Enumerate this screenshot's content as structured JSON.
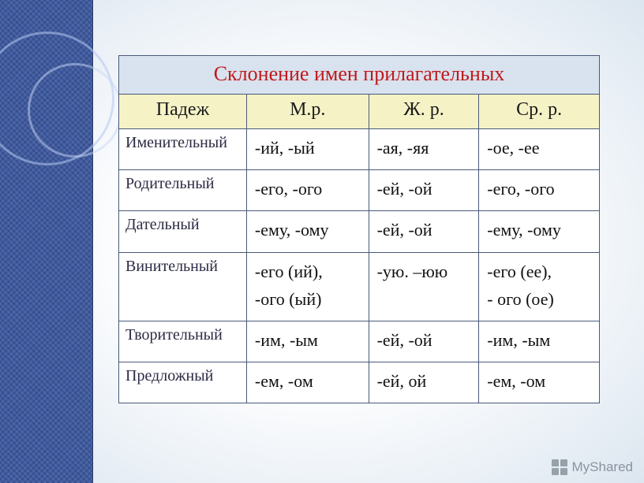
{
  "title": "Склонение имен прилагательных",
  "columns": [
    "Падеж",
    "М.р.",
    "Ж. р.",
    "Ср. р."
  ],
  "rows": [
    {
      "case": "Именительный",
      "m": "-ий, -ый",
      "f": "-ая, -яя",
      "n": "-ое, -ее"
    },
    {
      "case": "Родительный",
      "m": "-его, -ого",
      "f": "-ей, -ой",
      "n": "-его, -ого"
    },
    {
      "case": "Дательный",
      "m": "-ему, -ому",
      "f": "-ей, -ой",
      "n": "-ему, -ому"
    },
    {
      "case": "Винительный",
      "m": "-его (ий),\n-ого (ый)",
      "f": "-ую. –юю",
      "n": "-его (ее),\n- ого (ое)"
    },
    {
      "case": "Творительный",
      "m": "-им, -ым",
      "f": "-ей, -ой",
      "n": "-им, -ым"
    },
    {
      "case": "Предложный",
      "m": "-ем, -ом",
      "f": "-ей, ой",
      "n": "-ем, -ом"
    }
  ],
  "watermark": "MyShared",
  "colors": {
    "title_bg": "#d9e2ef",
    "title_text": "#c01a1a",
    "header_bg": "#f5f3c6",
    "border": "#4a5a7a",
    "sidebar": "#3f5b9f"
  }
}
